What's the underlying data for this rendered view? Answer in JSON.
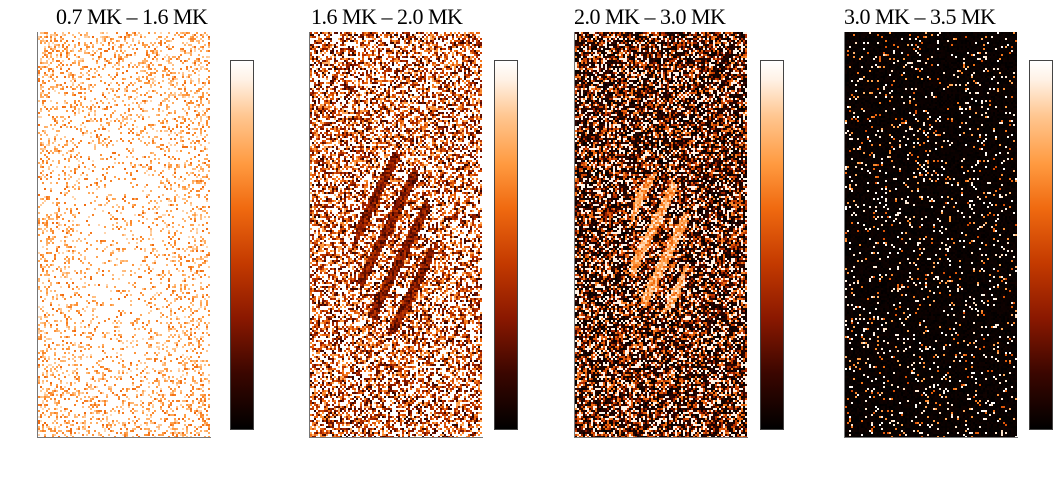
{
  "panels": [
    {
      "title": "0.7 MK – 1.6 MK"
    },
    {
      "title": "1.6 MK – 2.0 MK"
    },
    {
      "title": "2.0 MK – 3.0 MK"
    },
    {
      "title": "3.0 MK – 3.5 MK"
    }
  ]
}
